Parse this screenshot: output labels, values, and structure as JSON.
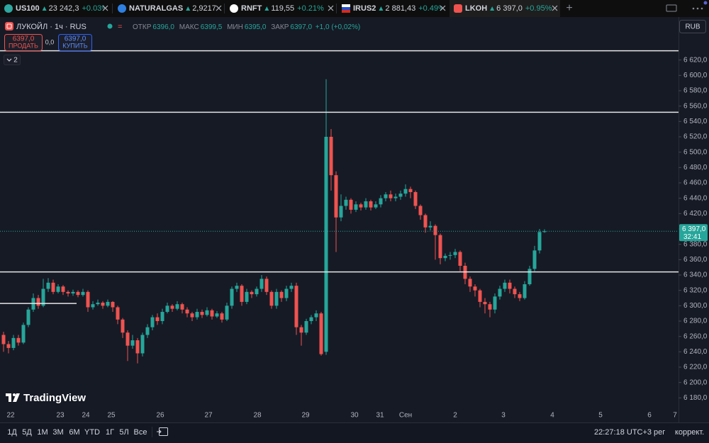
{
  "tabs": [
    {
      "symbol": "US100",
      "price": "23 242,3",
      "change": "+0.03%"
    },
    {
      "symbol": "NATURALGAS",
      "price": "2,9217"
    },
    {
      "symbol": "RNFT",
      "price": "119,55",
      "change": "+0.21%"
    },
    {
      "symbol": "IRUS2",
      "price": "2 881,43",
      "change": "+0.49%"
    },
    {
      "symbol": "LKOH",
      "price": "6 397,0",
      "change": "+0.95%"
    }
  ],
  "header": {
    "instrument": "ЛУКОЙЛ · 1ч · RUS",
    "ohlc": [
      {
        "label": "ОТКР",
        "value": "6396,0"
      },
      {
        "label": "МАКС",
        "value": "6399,5"
      },
      {
        "label": "МИН",
        "value": "6395,0"
      },
      {
        "label": "ЗАКР",
        "value": "6397,0"
      }
    ],
    "change": "+1,0 (+0,02%)",
    "sell": {
      "price": "6397,0",
      "label": "ПРОДАТЬ"
    },
    "spread": "0,0",
    "buy": {
      "price": "6397,0",
      "label": "КУПИТЬ"
    },
    "indicators": "2",
    "currency": "RUB"
  },
  "watermark": "TradingView",
  "chart_data": {
    "type": "candlestick",
    "categories": [
      "22",
      "23",
      "24",
      "25",
      "26",
      "27",
      "28",
      "29",
      "30",
      "31",
      "Сен",
      "2",
      "3",
      "4",
      "5",
      "6",
      "7"
    ],
    "open": [
      6262,
      6250,
      6245,
      6258,
      6252,
      6275,
      6295,
      6310,
      6300,
      6322,
      6330,
      6318,
      6325,
      6318,
      6316,
      6318,
      6314,
      6318,
      6298,
      6302,
      6304,
      6300,
      6305,
      6298,
      6282,
      6265,
      6248,
      6255,
      6238,
      6262,
      6272,
      6285,
      6280,
      6292,
      6300,
      6296,
      6302,
      6295,
      6290,
      6285,
      6292,
      6288,
      6294,
      6286,
      6290,
      6282,
      6300,
      6322,
      6326,
      6305,
      6318,
      6315,
      6322,
      6335,
      6318,
      6300,
      6318,
      6310,
      6322,
      6326,
      6272,
      6265,
      6280,
      6285,
      6290,
      6240,
      6520,
      6470,
      6415,
      6430,
      6438,
      6425,
      6432,
      6428,
      6436,
      6428,
      6432,
      6440,
      6445,
      6440,
      6442,
      6446,
      6452,
      6448,
      6430,
      6418,
      6402,
      6404,
      6392,
      6362,
      6365,
      6366,
      6370,
      6352,
      6335,
      6325,
      6320,
      6305,
      6302,
      6295,
      6312,
      6322,
      6330,
      6322,
      6315,
      6310,
      6328,
      6348,
      6372,
      6396
    ],
    "high": [
      6266,
      6254,
      6262,
      6262,
      6278,
      6298,
      6316,
      6314,
      6335,
      6336,
      6334,
      6328,
      6327,
      6320,
      6321,
      6320,
      6322,
      6320,
      6306,
      6308,
      6306,
      6308,
      6306,
      6300,
      6284,
      6268,
      6262,
      6258,
      6265,
      6276,
      6288,
      6290,
      6296,
      6304,
      6302,
      6306,
      6304,
      6298,
      6292,
      6296,
      6295,
      6298,
      6296,
      6293,
      6292,
      6304,
      6325,
      6330,
      6328,
      6322,
      6320,
      6325,
      6340,
      6338,
      6320,
      6322,
      6320,
      6326,
      6330,
      6330,
      6275,
      6283,
      6288,
      6294,
      6292,
      6595,
      6530,
      6475,
      6445,
      6442,
      6440,
      6436,
      6434,
      6440,
      6438,
      6436,
      6444,
      6448,
      6450,
      6446,
      6450,
      6458,
      6455,
      6450,
      6432,
      6420,
      6410,
      6406,
      6394,
      6368,
      6370,
      6374,
      6372,
      6356,
      6338,
      6328,
      6322,
      6310,
      6305,
      6316,
      6326,
      6334,
      6334,
      6325,
      6318,
      6332,
      6352,
      6378,
      6400,
      6399.5
    ],
    "low": [
      6240,
      6238,
      6242,
      6248,
      6250,
      6272,
      6292,
      6296,
      6298,
      6318,
      6315,
      6316,
      6314,
      6312,
      6313,
      6311,
      6312,
      6292,
      6295,
      6300,
      6296,
      6298,
      6292,
      6276,
      6258,
      6228,
      6244,
      6225,
      6234,
      6258,
      6268,
      6275,
      6276,
      6290,
      6292,
      6294,
      6290,
      6285,
      6280,
      6282,
      6284,
      6286,
      6282,
      6284,
      6278,
      6280,
      6296,
      6318,
      6300,
      6302,
      6310,
      6312,
      6318,
      6314,
      6296,
      6296,
      6305,
      6306,
      6318,
      6262,
      6248,
      6262,
      6276,
      6280,
      6235,
      6236,
      6450,
      6370,
      6410,
      6425,
      6420,
      6422,
      6424,
      6425,
      6424,
      6426,
      6428,
      6436,
      6436,
      6436,
      6438,
      6442,
      6440,
      6426,
      6412,
      6395,
      6398,
      6360,
      6354,
      6358,
      6360,
      6362,
      6345,
      6328,
      6318,
      6312,
      6298,
      6290,
      6285,
      6290,
      6308,
      6318,
      6316,
      6310,
      6306,
      6308,
      6326,
      6345,
      6368,
      6395
    ],
    "close": [
      6250,
      6245,
      6258,
      6252,
      6275,
      6295,
      6310,
      6300,
      6322,
      6330,
      6318,
      6325,
      6318,
      6316,
      6318,
      6314,
      6318,
      6298,
      6302,
      6304,
      6300,
      6305,
      6298,
      6282,
      6265,
      6248,
      6255,
      6238,
      6262,
      6272,
      6285,
      6280,
      6292,
      6300,
      6296,
      6302,
      6295,
      6290,
      6285,
      6292,
      6288,
      6294,
      6286,
      6290,
      6282,
      6300,
      6322,
      6326,
      6305,
      6318,
      6315,
      6322,
      6335,
      6318,
      6300,
      6318,
      6310,
      6322,
      6326,
      6272,
      6265,
      6280,
      6285,
      6290,
      6237,
      6520,
      6470,
      6415,
      6430,
      6438,
      6425,
      6432,
      6428,
      6436,
      6428,
      6432,
      6440,
      6445,
      6440,
      6442,
      6446,
      6452,
      6448,
      6430,
      6418,
      6402,
      6404,
      6392,
      6362,
      6365,
      6366,
      6370,
      6352,
      6335,
      6325,
      6320,
      6305,
      6302,
      6295,
      6312,
      6322,
      6330,
      6322,
      6315,
      6310,
      6328,
      6348,
      6372,
      6396,
      6397
    ],
    "up_color": "#26a69a",
    "down_color": "#ef5350",
    "ylim": [
      6148,
      6676
    ],
    "yticks": [
      {
        "value": 6180,
        "label": "6 180,0"
      },
      {
        "value": 6200,
        "label": "6 200,0"
      },
      {
        "value": 6220,
        "label": "6 220,0"
      },
      {
        "value": 6240,
        "label": "6 240,0"
      },
      {
        "value": 6260,
        "label": "6 260,0"
      },
      {
        "value": 6280,
        "label": "6 280,0"
      },
      {
        "value": 6300,
        "label": "6 300,0"
      },
      {
        "value": 6320,
        "label": "6 320,0"
      },
      {
        "value": 6340,
        "label": "6 340,0"
      },
      {
        "value": 6360,
        "label": "6 360,0"
      },
      {
        "value": 6380,
        "label": "6 380,0"
      },
      {
        "value": 6400,
        "label": "6 400,0"
      },
      {
        "value": 6420,
        "label": "6 420,0"
      },
      {
        "value": 6440,
        "label": "6 440,0"
      },
      {
        "value": 6460,
        "label": "6 460,0"
      },
      {
        "value": 6480,
        "label": "6 480,0"
      },
      {
        "value": 6500,
        "label": "6 500,0"
      },
      {
        "value": 6520,
        "label": "6 520,0"
      },
      {
        "value": 6540,
        "label": "6 540,0"
      },
      {
        "value": 6560,
        "label": "6 560,0"
      },
      {
        "value": 6580,
        "label": "6 580,0"
      },
      {
        "value": 6600,
        "label": "6 600,0"
      },
      {
        "value": 6620,
        "label": "6 620,0"
      }
    ],
    "hlines": [
      6632,
      6552,
      6344
    ],
    "short_hline": 6303,
    "last_price": {
      "value": 6397,
      "label": "6 397,0"
    },
    "countdown": "32:41"
  },
  "footer": {
    "ranges": [
      "1Д",
      "5Д",
      "1М",
      "3М",
      "6М",
      "YTD",
      "1Г",
      "5Л",
      "Все"
    ],
    "time": "22:27:18 UTC+3",
    "scale": "рег",
    "adjust": "коррект."
  }
}
